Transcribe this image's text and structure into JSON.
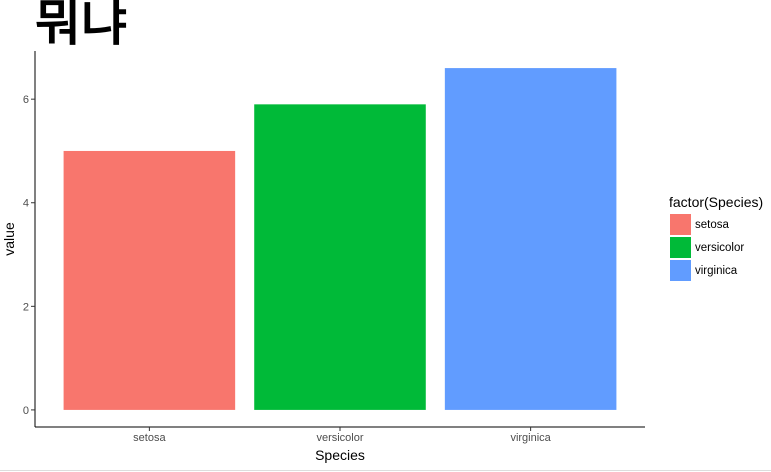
{
  "chart_data": {
    "type": "bar",
    "title": "뭐냐",
    "xlabel": "Species",
    "ylabel": "value",
    "categories": [
      "setosa",
      "versicolor",
      "virginica"
    ],
    "values": [
      5.0,
      5.9,
      6.6
    ],
    "colors": [
      "#F8766D",
      "#00BA38",
      "#619CFF"
    ],
    "ylim": [
      -0.33,
      6.93
    ],
    "yticks": [
      0,
      2,
      4,
      6
    ],
    "grid": false,
    "legend": {
      "title": "factor(Species)",
      "placement": "right",
      "entries": [
        "setosa",
        "versicolor",
        "virginica"
      ]
    }
  }
}
